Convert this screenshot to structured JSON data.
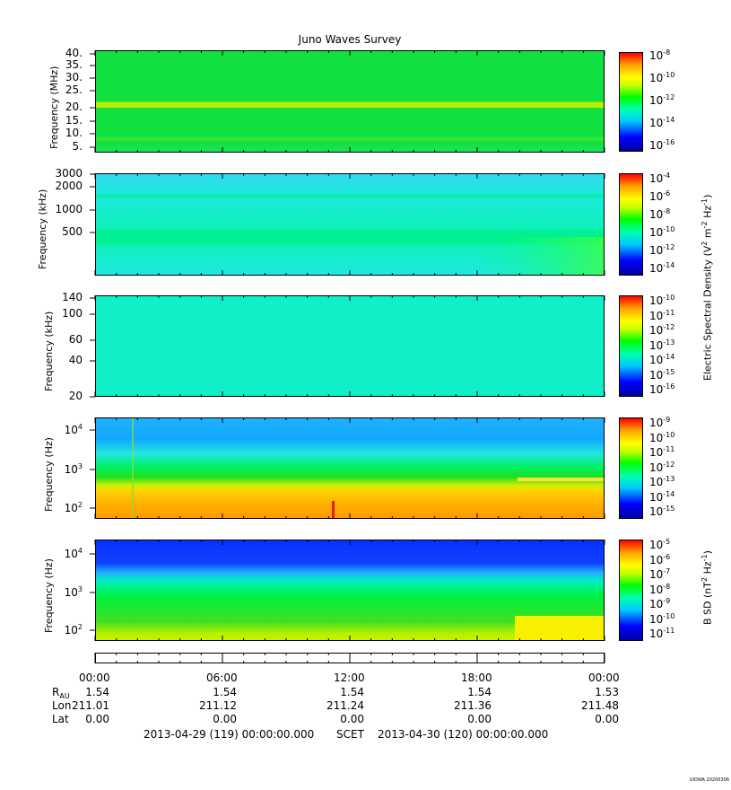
{
  "title": "Juno Waves Survey",
  "panels": [
    {
      "ylabel": "Frequency (MHz)",
      "yticks": [
        "40.",
        "35.",
        "30.",
        "25.",
        "20.",
        "15.",
        "10.",
        "5."
      ],
      "cbar_ticks": [
        "10-8",
        "10-10",
        "10-12",
        "10-14",
        "10-16"
      ]
    },
    {
      "ylabel": "Frequency (kHz)",
      "yticks": [
        "3000",
        "2000",
        "1000",
        "500"
      ],
      "cbar_ticks": [
        "10-4",
        "10-6",
        "10-8",
        "10-10",
        "10-12",
        "10-14"
      ]
    },
    {
      "ylabel": "Frequency (kHz)",
      "yticks": [
        "140",
        "100",
        "60",
        "40",
        "20"
      ],
      "cbar_ticks": [
        "10-10",
        "10-11",
        "10-12",
        "10-13",
        "10-14",
        "10-15",
        "10-16"
      ]
    },
    {
      "ylabel": "Frequency (Hz)",
      "yticks": [
        "10^4",
        "10^3",
        "10^2"
      ],
      "cbar_ticks": [
        "10-9",
        "10-10",
        "10-11",
        "10-12",
        "10-13",
        "10-14",
        "10-15"
      ]
    },
    {
      "ylabel": "Frequency (Hz)",
      "yticks": [
        "10^4",
        "10^3",
        "10^2"
      ],
      "cbar_ticks": [
        "10-5",
        "10-6",
        "10-7",
        "10-8",
        "10-9",
        "10-10",
        "10-11"
      ]
    }
  ],
  "right_labels": {
    "electric": "Electric Spectral Density (V2 m-2 Hz-1)",
    "magnetic": "B SD (nT2 Hz-1)"
  },
  "ephemeris": {
    "times": [
      "00:00",
      "06:00",
      "12:00",
      "18:00",
      "00:00"
    ],
    "rows": [
      {
        "label": "R",
        "label_sub": "AU",
        "values": [
          "1.54",
          "1.54",
          "1.54",
          "1.54",
          "1.53"
        ]
      },
      {
        "label": "Lon",
        "label_sub": "",
        "values": [
          "211.01",
          "211.12",
          "211.24",
          "211.36",
          "211.48"
        ]
      },
      {
        "label": "Lat",
        "label_sub": "",
        "values": [
          "0.00",
          "0.00",
          "0.00",
          "0.00",
          "0.00"
        ]
      }
    ]
  },
  "footer": {
    "start": "2013-04-29 (119) 00:00:00.000",
    "scet": "SCET",
    "end": "2013-04-30 (120) 00:00:00.000"
  },
  "stamp": "UIOWA 20200306",
  "chart_data": [
    {
      "type": "heatmap",
      "title": "Juno Waves Survey",
      "ylabel": "Frequency (MHz)",
      "ylim": [
        3,
        41
      ],
      "x_range": [
        "2013-04-29 00:00",
        "2013-04-30 00:00"
      ],
      "colorbar_range_log10": [
        -17,
        -7
      ],
      "features": [
        {
          "freq_MHz": 21.5,
          "level_log10": -11.5
        },
        {
          "freq_MHz": 9,
          "level_log10": -13
        },
        {
          "background_log10": -13
        }
      ]
    },
    {
      "type": "heatmap",
      "ylabel": "Frequency (kHz)",
      "ylim_log": [
        100,
        3000
      ],
      "colorbar_range_log10": [
        -14,
        -3
      ],
      "features": [
        {
          "freq_kHz": 1500,
          "level_log10": -9.5
        },
        {
          "freq_kHz": 400,
          "level_log10": -9
        },
        {
          "background_log10": -10.5
        }
      ]
    },
    {
      "type": "heatmap",
      "ylabel": "Frequency (kHz)",
      "ylim": [
        20,
        140
      ],
      "colorbar_range_log10": [
        -16,
        -10
      ],
      "features": [
        {
          "background_log10": -14.2
        }
      ]
    },
    {
      "type": "heatmap",
      "ylabel": "Frequency (Hz)",
      "ylim_log": [
        50,
        20000
      ],
      "colorbar_range_log10": [
        -15,
        -9
      ],
      "features": [
        {
          "freq_Hz_range": [
            50,
            300
          ],
          "level_log10": -10.5
        },
        {
          "freq_Hz": 1000,
          "level_log10": -12.3
        },
        {
          "freq_Hz_range": [
            3000,
            20000
          ],
          "level_log10": -14
        },
        {
          "line_freq_Hz": 550,
          "x_range": [
            "19:45",
            "24:00"
          ],
          "level_log10": -10.8
        }
      ]
    },
    {
      "type": "heatmap",
      "ylabel": "Frequency (Hz)",
      "ylim_log": [
        50,
        20000
      ],
      "colorbar_range_log10": [
        -11,
        -4.5
      ],
      "features": [
        {
          "freq_Hz_range": [
            3000,
            20000
          ],
          "level_log10": -10.6
        },
        {
          "freq_Hz_range": [
            50,
            1000
          ],
          "level_log10": -8.5
        },
        {
          "block_freq_Hz_range": [
            50,
            200
          ],
          "x_range": [
            "19:45",
            "24:00"
          ],
          "level_log10": -7.2
        }
      ]
    }
  ],
  "colors": {
    "background": "#ffffff",
    "colormap": [
      "#0000a0",
      "#0000ff",
      "#00c8ff",
      "#00ffb0",
      "#00ff00",
      "#c8ff00",
      "#ffff00",
      "#ffa000",
      "#ff0000"
    ]
  }
}
